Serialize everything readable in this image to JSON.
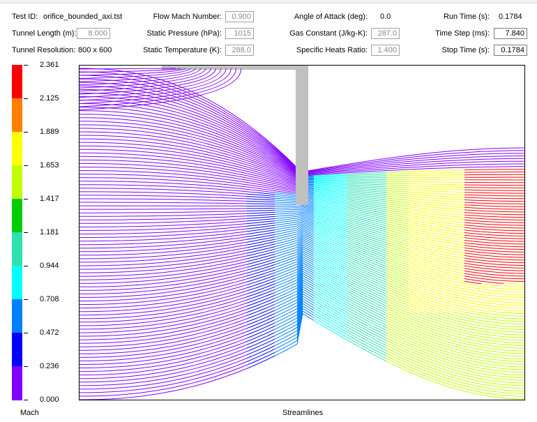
{
  "header": {
    "test_id_label": "Test ID:",
    "test_id_value": "orifice_bounded_axi.tst",
    "tunnel_length_label": "Tunnel Length (m):",
    "tunnel_length_value": "8.000",
    "tunnel_resolution_label": "Tunnel Resolution:",
    "tunnel_resolution_value": "800 x 600",
    "flow_mach_label": "Flow Mach Number:",
    "flow_mach_value": "0.900",
    "static_pressure_label": "Static Pressure (hPa):",
    "static_pressure_value": "1015",
    "static_temperature_label": "Static Temperature (K):",
    "static_temperature_value": "288.0",
    "angle_of_attack_label": "Angle of Attack (deg):",
    "angle_of_attack_value": "0.0",
    "gas_constant_label": "Gas Constant (J/kg-K):",
    "gas_constant_value": "287.0",
    "specific_heats_label": "Specific Heats Ratio:",
    "specific_heats_value": "1.400",
    "run_time_label": "Run Time (s):",
    "run_time_value": "0.1784",
    "time_step_label": "Time Step (ms):",
    "time_step_value": "7.840",
    "stop_time_label": "Stop Time (s):",
    "stop_time_value": "0.1784"
  },
  "scale": {
    "ticks": [
      "2.361",
      "2.125",
      "1.889",
      "1.653",
      "1.417",
      "1.181",
      "0.944",
      "0.708",
      "0.472",
      "0.236",
      "0.000"
    ],
    "colors": [
      "#ff0000",
      "#ff8000",
      "#ffff00",
      "#c0ff00",
      "#00cc00",
      "#30e0b0",
      "#00ffff",
      "#0080ff",
      "#0000ff",
      "#8000ff"
    ],
    "label": "Mach"
  },
  "plot": {
    "label": "Streamlines"
  }
}
